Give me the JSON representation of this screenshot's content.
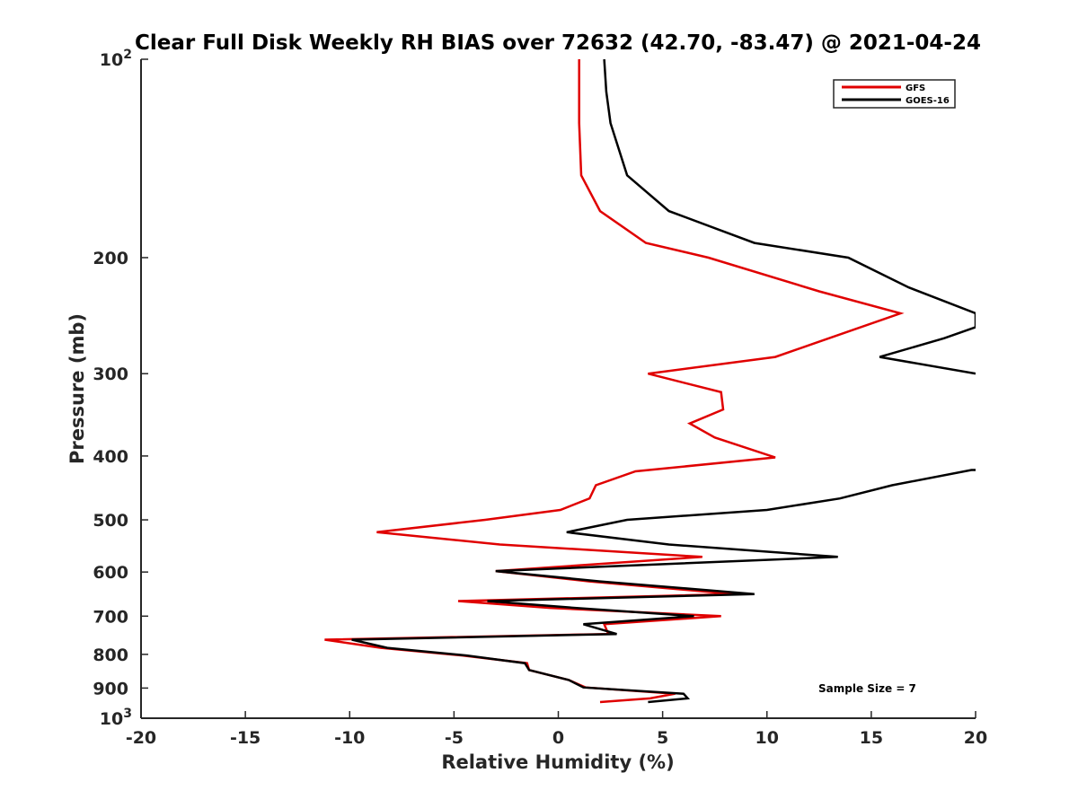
{
  "chart_data": {
    "type": "line",
    "title": "Clear Full Disk Weekly RH BIAS over 72632 (42.70, -83.47) @ 2021-04-24",
    "xlabel": "Relative Humidity (%)",
    "ylabel": "Pressure (mb)",
    "xlim": [
      -20,
      20
    ],
    "ylim": [
      100,
      1000
    ],
    "y_scale": "log",
    "y_reversed": true,
    "grid": false,
    "legend_position": "top-right",
    "x_ticks": [
      {
        "value": -20,
        "label": "-20"
      },
      {
        "value": -15,
        "label": "-15"
      },
      {
        "value": -10,
        "label": "-10"
      },
      {
        "value": -5,
        "label": "-5"
      },
      {
        "value": 0,
        "label": "0"
      },
      {
        "value": 5,
        "label": "5"
      },
      {
        "value": 10,
        "label": "10"
      },
      {
        "value": 15,
        "label": "15"
      },
      {
        "value": 20,
        "label": "20"
      }
    ],
    "y_ticks": [
      {
        "value": 100,
        "base": "10",
        "exp": "2"
      },
      {
        "value": 200,
        "label": "200"
      },
      {
        "value": 300,
        "label": "300"
      },
      {
        "value": 400,
        "label": "400"
      },
      {
        "value": 500,
        "label": "500"
      },
      {
        "value": 600,
        "label": "600"
      },
      {
        "value": 700,
        "label": "700"
      },
      {
        "value": 800,
        "label": "800"
      },
      {
        "value": 900,
        "label": "900"
      },
      {
        "value": 1000,
        "base": "10",
        "exp": "3"
      }
    ],
    "series": [
      {
        "name": "GFS",
        "color": "#e00000",
        "points": [
          [
            1.0,
            100
          ],
          [
            1.0,
            125
          ],
          [
            1.1,
            150
          ],
          [
            2.0,
            170
          ],
          [
            4.2,
            190
          ],
          [
            7.2,
            200
          ],
          [
            12.5,
            225
          ],
          [
            16.4,
            243
          ],
          [
            10.4,
            283
          ],
          [
            4.3,
            300
          ],
          [
            7.8,
            320
          ],
          [
            7.9,
            340
          ],
          [
            6.3,
            357
          ],
          [
            7.5,
            375
          ],
          [
            10.4,
            402
          ],
          [
            3.7,
            422
          ],
          [
            1.8,
            443
          ],
          [
            1.5,
            464
          ],
          [
            0.1,
            483
          ],
          [
            -3.5,
            500
          ],
          [
            -8.7,
            522
          ],
          [
            -2.8,
            545
          ],
          [
            6.9,
            569
          ],
          [
            -3.0,
            598
          ],
          [
            1.5,
            620
          ],
          [
            8.4,
            648
          ],
          [
            -4.8,
            664
          ],
          [
            -0.4,
            680
          ],
          [
            7.8,
            700
          ],
          [
            2.2,
            720
          ],
          [
            2.4,
            745
          ],
          [
            -11.2,
            760
          ],
          [
            -8.5,
            782
          ],
          [
            -4.6,
            803
          ],
          [
            -1.5,
            825
          ],
          [
            -1.4,
            845
          ],
          [
            0.5,
            875
          ],
          [
            1.3,
            898
          ],
          [
            5.6,
            918
          ],
          [
            4.4,
            933
          ],
          [
            2.0,
            945
          ]
        ]
      },
      {
        "name": "GOES-16",
        "color": "#000000",
        "points": [
          [
            2.2,
            100
          ],
          [
            2.3,
            112
          ],
          [
            2.5,
            125
          ],
          [
            3.3,
            150
          ],
          [
            5.3,
            170
          ],
          [
            9.4,
            190
          ],
          [
            13.9,
            200
          ],
          [
            16.8,
            222
          ],
          [
            20.0,
            243
          ],
          [
            20.0,
            255
          ],
          [
            18.5,
            265
          ],
          [
            15.4,
            283
          ],
          [
            20.0,
            300
          ],
          null,
          [
            20.0,
            420
          ],
          [
            19.8,
            420
          ],
          [
            16.0,
            443
          ],
          [
            13.5,
            464
          ],
          [
            10.0,
            483
          ],
          [
            3.3,
            500
          ],
          [
            0.4,
            522
          ],
          [
            5.3,
            545
          ],
          [
            13.4,
            569
          ],
          [
            -3.0,
            598
          ],
          [
            2.0,
            620
          ],
          [
            9.4,
            648
          ],
          [
            -3.4,
            664
          ],
          [
            0.8,
            680
          ],
          [
            6.5,
            700
          ],
          [
            1.2,
            720
          ],
          [
            2.8,
            745
          ],
          [
            -9.9,
            760
          ],
          [
            -8.2,
            782
          ],
          [
            -4.4,
            803
          ],
          [
            -1.6,
            825
          ],
          [
            -1.4,
            845
          ],
          [
            0.5,
            875
          ],
          [
            1.2,
            898
          ],
          [
            6.0,
            918
          ],
          [
            6.2,
            933
          ],
          [
            4.3,
            945
          ]
        ]
      }
    ],
    "annotation": "Sample Size = 7"
  }
}
